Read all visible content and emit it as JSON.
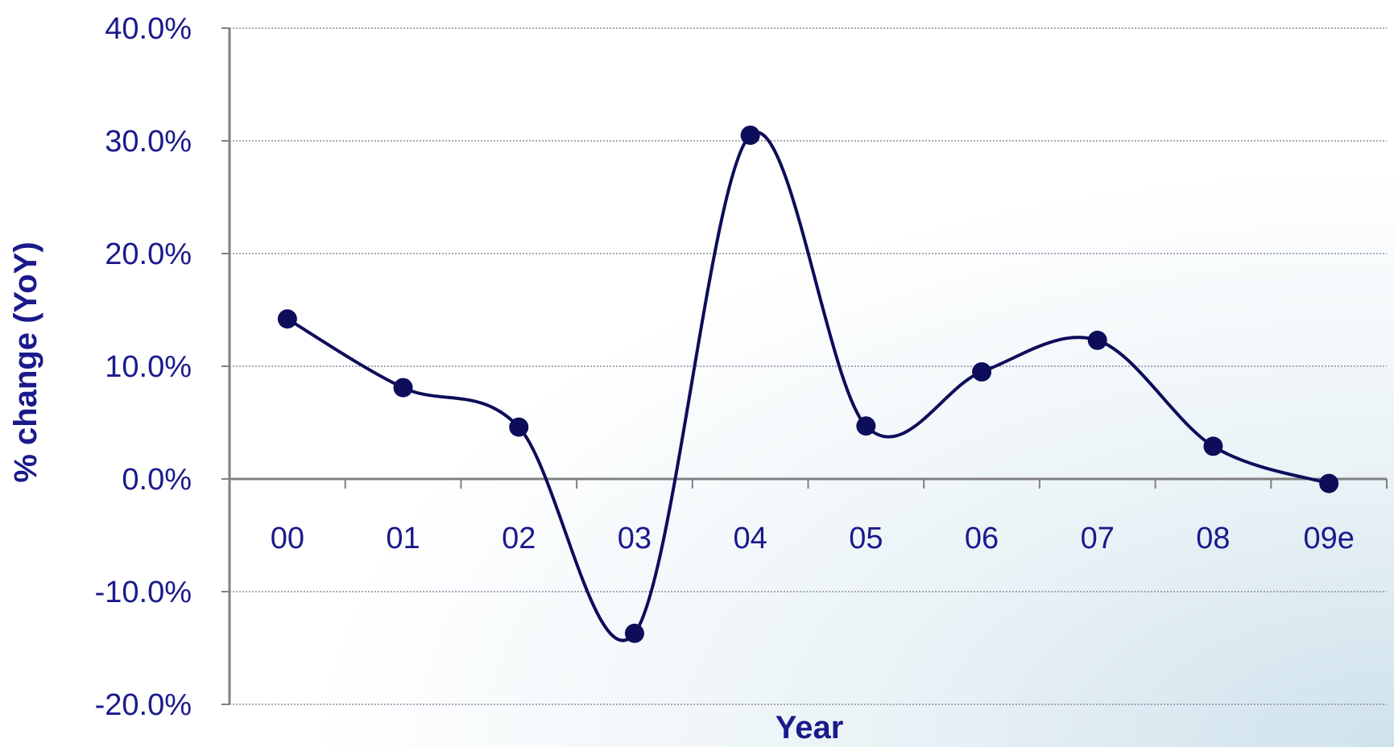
{
  "chart_data": {
    "type": "line",
    "xlabel": "Year",
    "ylabel": "% change (YoY)",
    "categories": [
      "00",
      "01",
      "02",
      "03",
      "04",
      "05",
      "06",
      "07",
      "08",
      "09e"
    ],
    "series": [
      {
        "values": [
          14.2,
          8.1,
          4.6,
          -13.7,
          30.5,
          4.7,
          9.5,
          12.3,
          2.9,
          -0.4
        ]
      }
    ],
    "ylim": [
      -20,
      40
    ],
    "yticks": [
      40,
      30,
      20,
      10,
      0,
      -10,
      -20
    ],
    "ytick_labels": [
      "40.0%",
      "30.0%",
      "20.0%",
      "10.0%",
      "0.0%",
      "-10.0%",
      "-20.0%"
    ],
    "grid": true,
    "smooth": true,
    "colors": {
      "line": "#0d0d5a",
      "text": "#1a1a8c",
      "axis": "#808080"
    }
  }
}
